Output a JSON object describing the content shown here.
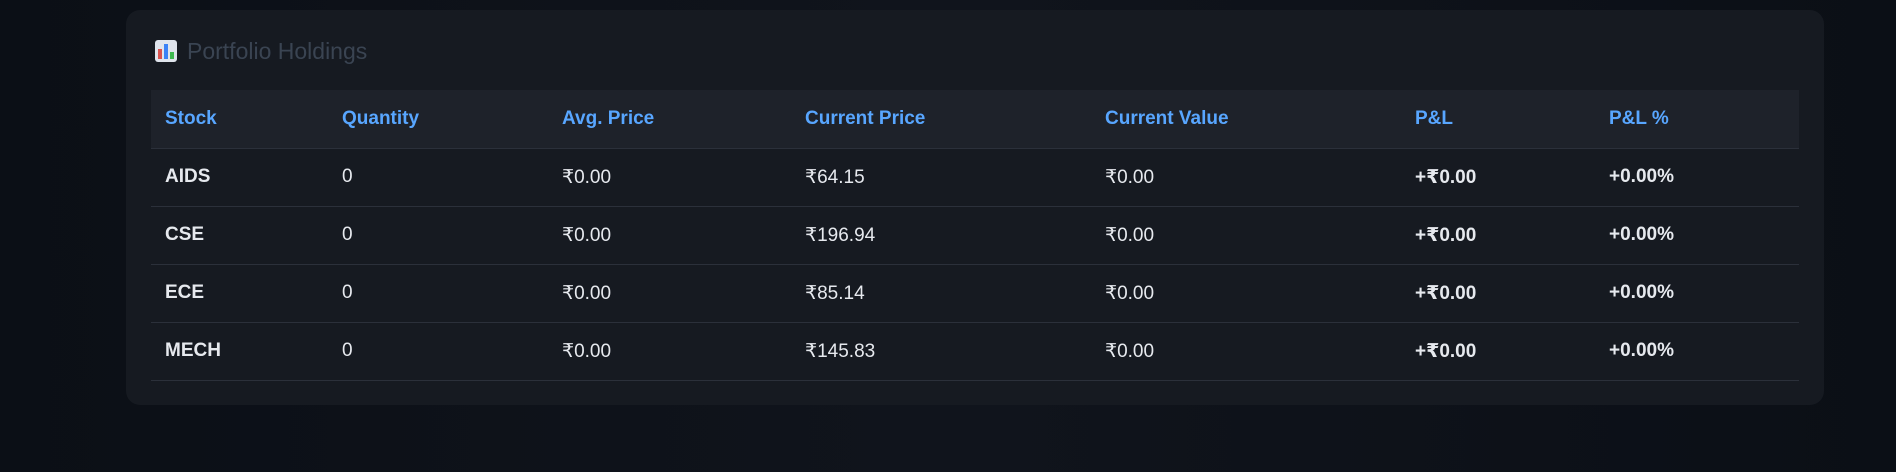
{
  "card": {
    "title": "Portfolio Holdings",
    "icon": "bar-chart-icon"
  },
  "table": {
    "columns": [
      "Stock",
      "Quantity",
      "Avg. Price",
      "Current Price",
      "Current Value",
      "P&L",
      "P&L %"
    ],
    "rows": [
      {
        "stock": "AIDS",
        "quantity": "0",
        "avg_price": "₹0.00",
        "current_price": "₹64.15",
        "current_value": "₹0.00",
        "pl": "+₹0.00",
        "pl_pct": "+0.00%"
      },
      {
        "stock": "CSE",
        "quantity": "0",
        "avg_price": "₹0.00",
        "current_price": "₹196.94",
        "current_value": "₹0.00",
        "pl": "+₹0.00",
        "pl_pct": "+0.00%"
      },
      {
        "stock": "ECE",
        "quantity": "0",
        "avg_price": "₹0.00",
        "current_price": "₹85.14",
        "current_value": "₹0.00",
        "pl": "+₹0.00",
        "pl_pct": "+0.00%"
      },
      {
        "stock": "MECH",
        "quantity": "0",
        "avg_price": "₹0.00",
        "current_price": "₹145.83",
        "current_value": "₹0.00",
        "pl": "+₹0.00",
        "pl_pct": "+0.00%"
      }
    ]
  },
  "colors": {
    "background": "#0d1117",
    "card": "#161a21",
    "header_row": "#1e222a",
    "accent": "#58a6ff",
    "title_muted": "#3a4452"
  }
}
